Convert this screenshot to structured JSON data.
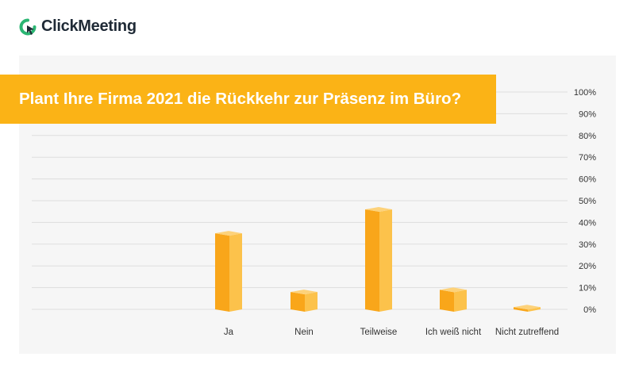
{
  "brand": {
    "name": "ClickMeeting",
    "logo_color": "#2bb673",
    "text_color": "#1f2a36"
  },
  "colors": {
    "accent": "#fbb316",
    "bar_front": "#f9a61a",
    "bar_side": "#fcc24b",
    "bar_top": "#fdd27a",
    "grid": "#dddddd",
    "panel": "#f6f6f6"
  },
  "chart_data": {
    "type": "bar",
    "title": "Plant Ihre Firma 2021 die Rückkehr zur Präsenz im Büro?",
    "categories": [
      "Ja",
      "Nein",
      "Teilweise",
      "Ich weiß nicht",
      "Nicht zutreffend"
    ],
    "values": [
      35,
      8,
      46,
      9,
      1
    ],
    "ylim": [
      0,
      100
    ],
    "yticks": [
      "0%",
      "10%",
      "20%",
      "30%",
      "40%",
      "50%",
      "60%",
      "70%",
      "80%",
      "90%",
      "100%"
    ],
    "xlabel": "",
    "ylabel": "",
    "grid": true,
    "legend": "none"
  }
}
